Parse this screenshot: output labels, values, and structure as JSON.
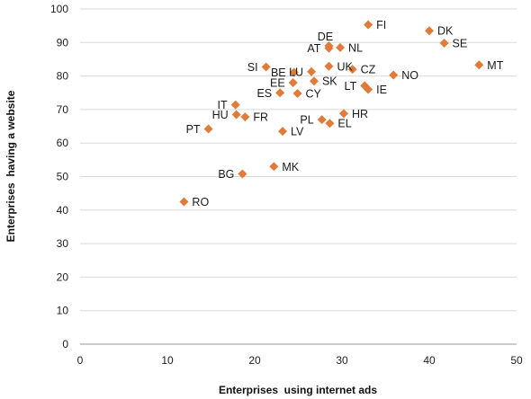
{
  "chart_data": {
    "type": "scatter",
    "title": "",
    "xlabel": "Enterprises  using internet ads",
    "ylabel": "Enterprises  having a website",
    "xlim": [
      0,
      50
    ],
    "ylim": [
      0,
      100
    ],
    "xticks": [
      0,
      10,
      20,
      30,
      40,
      50
    ],
    "yticks": [
      0,
      10,
      20,
      30,
      40,
      50,
      60,
      70,
      80,
      90,
      100
    ],
    "grid": "horizontal",
    "marker": "diamond",
    "marker_color": "#E07B39",
    "points": [
      {
        "label": "FI",
        "x": 33.0,
        "y": 95.3,
        "pos": "right"
      },
      {
        "label": "DK",
        "x": 40.0,
        "y": 93.5,
        "pos": "right"
      },
      {
        "label": "SE",
        "x": 41.7,
        "y": 89.8,
        "pos": "right"
      },
      {
        "label": "DE",
        "x": 28.5,
        "y": 89.0,
        "pos": "above"
      },
      {
        "label": "AT",
        "x": 28.5,
        "y": 88.3,
        "pos": "left"
      },
      {
        "label": "NL",
        "x": 29.8,
        "y": 88.5,
        "pos": "right"
      },
      {
        "label": "MT",
        "x": 45.7,
        "y": 83.3,
        "pos": "right"
      },
      {
        "label": "SI",
        "x": 21.3,
        "y": 82.7,
        "pos": "left"
      },
      {
        "label": "UK",
        "x": 28.5,
        "y": 82.9,
        "pos": "right"
      },
      {
        "label": "CZ",
        "x": 31.2,
        "y": 82.0,
        "pos": "right"
      },
      {
        "label": "BE",
        "x": 24.5,
        "y": 81.1,
        "pos": "left"
      },
      {
        "label": "LU",
        "x": 26.5,
        "y": 81.3,
        "pos": "left"
      },
      {
        "label": "NO",
        "x": 35.9,
        "y": 80.3,
        "pos": "right"
      },
      {
        "label": "EE",
        "x": 24.4,
        "y": 78.0,
        "pos": "left"
      },
      {
        "label": "SK",
        "x": 26.8,
        "y": 78.5,
        "pos": "right"
      },
      {
        "label": "LT",
        "x": 32.6,
        "y": 77.1,
        "pos": "left"
      },
      {
        "label": "IE",
        "x": 33.0,
        "y": 76.0,
        "pos": "right"
      },
      {
        "label": "ES",
        "x": 22.9,
        "y": 75.0,
        "pos": "left"
      },
      {
        "label": "CY",
        "x": 24.9,
        "y": 74.8,
        "pos": "right"
      },
      {
        "label": "IT",
        "x": 17.8,
        "y": 71.4,
        "pos": "left"
      },
      {
        "label": "HU",
        "x": 17.9,
        "y": 68.5,
        "pos": "left"
      },
      {
        "label": "FR",
        "x": 18.9,
        "y": 67.8,
        "pos": "right"
      },
      {
        "label": "HR",
        "x": 30.2,
        "y": 68.8,
        "pos": "right"
      },
      {
        "label": "PL",
        "x": 27.7,
        "y": 67.0,
        "pos": "left"
      },
      {
        "label": "EL",
        "x": 28.6,
        "y": 65.9,
        "pos": "right"
      },
      {
        "label": "PT",
        "x": 14.7,
        "y": 64.2,
        "pos": "left"
      },
      {
        "label": "LV",
        "x": 23.2,
        "y": 63.5,
        "pos": "right"
      },
      {
        "label": "MK",
        "x": 22.2,
        "y": 53.0,
        "pos": "right"
      },
      {
        "label": "BG",
        "x": 18.6,
        "y": 50.8,
        "pos": "left"
      },
      {
        "label": "RO",
        "x": 11.9,
        "y": 42.5,
        "pos": "right"
      }
    ]
  }
}
